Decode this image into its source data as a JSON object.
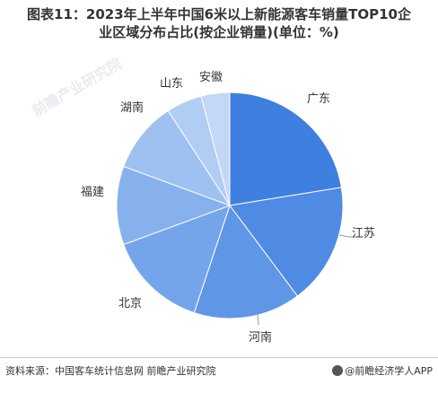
{
  "title_line1": "图表11：2023年上半年中国6米以上新能源客车销量TOP10企",
  "title_line2": "业区域分布占比(按企业销量)(单位：%)",
  "watermark_text": "前瞻产业研究院",
  "footer": {
    "source": "资料来源：中国客车统计信息网 前瞻产业研究院",
    "brand": "@前瞻经济学人APP"
  },
  "chart_data": {
    "type": "pie",
    "title": "2023年上半年中国6米以上新能源客车销量TOP10企业区域分布占比(按企业销量)(单位：%)",
    "categories": [
      "广东",
      "江苏",
      "河南",
      "北京",
      "福建",
      "湖南",
      "山东",
      "安徽"
    ],
    "values": [
      22,
      17,
      15,
      14,
      11,
      10,
      5,
      4
    ],
    "colors": [
      "#3f7fdf",
      "#4f8be3",
      "#5f97e6",
      "#74a5ea",
      "#86b1ed",
      "#9fc1f1",
      "#b1cdf3",
      "#c3d8f6"
    ],
    "legend": "none",
    "unit": "%"
  }
}
